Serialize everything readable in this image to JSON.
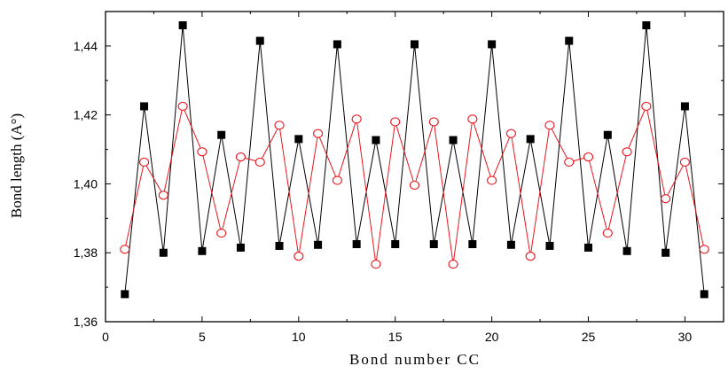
{
  "chart_data": {
    "type": "line",
    "title": "",
    "xlabel": "Bond number CC",
    "ylabel": "Bond length (A°)",
    "xlim": [
      0,
      32
    ],
    "ylim": [
      1.36,
      1.45
    ],
    "x_ticks": [
      0,
      5,
      10,
      15,
      20,
      25,
      30
    ],
    "y_ticks": [
      1.36,
      1.38,
      1.4,
      1.42,
      1.44
    ],
    "x_tick_labels": [
      "0",
      "5",
      "10",
      "15",
      "20",
      "25",
      "30"
    ],
    "y_tick_labels": [
      "1,36",
      "1,38",
      "1,40",
      "1,42",
      "1,44"
    ],
    "grid": false,
    "x": [
      1,
      2,
      3,
      4,
      5,
      6,
      7,
      8,
      9,
      10,
      11,
      12,
      13,
      14,
      15,
      16,
      17,
      18,
      19,
      20,
      21,
      22,
      23,
      24,
      25,
      26,
      27,
      28,
      29,
      30,
      31
    ],
    "series": [
      {
        "marker": "filled-square",
        "color": "#000000",
        "values": [
          1.368,
          1.4225,
          1.38,
          1.446,
          1.3805,
          1.4142,
          1.3815,
          1.4415,
          1.382,
          1.413,
          1.3823,
          1.4405,
          1.3825,
          1.4127,
          1.3825,
          1.4405,
          1.3825,
          1.4127,
          1.3825,
          1.4405,
          1.3823,
          1.413,
          1.382,
          1.4415,
          1.3815,
          1.4142,
          1.3805,
          1.446,
          1.38,
          1.4225,
          1.368
        ]
      },
      {
        "marker": "open-circle",
        "color": "#e8161e",
        "values": [
          1.381,
          1.4063,
          1.3967,
          1.4225,
          1.4093,
          1.3857,
          1.4078,
          1.4063,
          1.417,
          1.379,
          1.4146,
          1.401,
          1.4188,
          1.3767,
          1.418,
          1.3996,
          1.418,
          1.3767,
          1.4188,
          1.401,
          1.4146,
          1.379,
          1.417,
          1.4063,
          1.4078,
          1.3857,
          1.4093,
          1.4225,
          1.3957,
          1.4063,
          1.381
        ]
      }
    ]
  }
}
